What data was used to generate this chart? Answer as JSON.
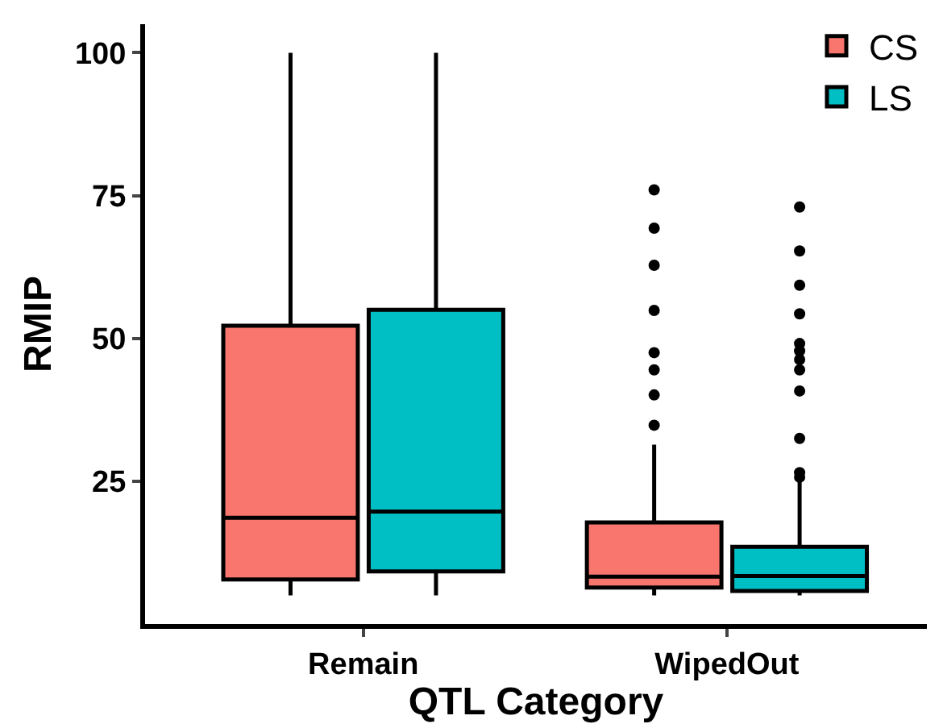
{
  "chart_data": {
    "type": "box",
    "xlabel": "QTL Category",
    "ylabel": "RMIP",
    "categories": [
      "Remain",
      "WipedOut"
    ],
    "ylim": [
      0,
      105
    ],
    "yticks": [
      25,
      50,
      75,
      100
    ],
    "grid": false,
    "legend": "top right",
    "series": [
      {
        "name": "CS",
        "color": "#f8766d",
        "boxes": [
          {
            "low": 5,
            "q1": 7.8,
            "median": 18.6,
            "q3": 52.2,
            "high": 100
          },
          {
            "low": 5,
            "q1": 6.4,
            "median": 8.3,
            "q3": 17.8,
            "high": 31.4,
            "outliers": [
              76,
              69.3,
              62.8,
              54.9,
              47.5,
              44.5,
              40.1,
              34.8
            ]
          }
        ]
      },
      {
        "name": "LS",
        "color": "#00bfc4",
        "boxes": [
          {
            "low": 5,
            "q1": 9.2,
            "median": 19.7,
            "q3": 55,
            "high": 100
          },
          {
            "low": 5,
            "q1": 5.8,
            "median": 8.4,
            "q3": 13.5,
            "high": 25.7,
            "outliers": [
              73,
              65.3,
              59.3,
              54.3,
              49.1,
              47.8,
              46.3,
              44.5,
              40.8,
              32.5,
              26.5,
              25.7
            ]
          }
        ]
      }
    ]
  }
}
